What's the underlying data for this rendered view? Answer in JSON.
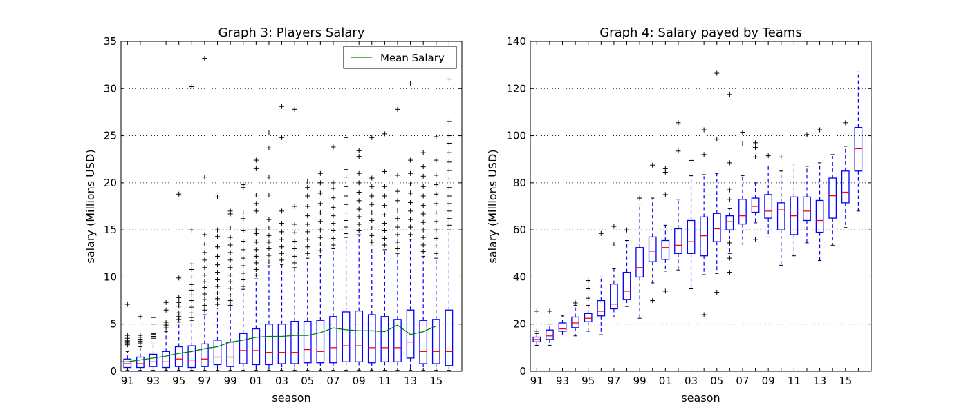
{
  "chart_data": [
    {
      "type": "box",
      "title": "Graph 3: Players Salary",
      "xlabel": "season",
      "ylabel": "salary (Millions USD)",
      "ylim": [
        0,
        35
      ],
      "yticks": [
        0,
        5,
        10,
        15,
        20,
        25,
        30,
        35
      ],
      "grid": "horizontal dotted",
      "legend": {
        "position": "top-right",
        "entries": [
          "Mean Salary"
        ]
      },
      "x": [
        "91",
        "92",
        "93",
        "94",
        "95",
        "96",
        "97",
        "98",
        "99",
        "00",
        "01",
        "02",
        "03",
        "04",
        "05",
        "06",
        "07",
        "08",
        "09",
        "10",
        "11",
        "12",
        "13",
        "14",
        "15",
        "16"
      ],
      "xtick_labels": [
        "91",
        "93",
        "95",
        "97",
        "99",
        "01",
        "03",
        "05",
        "07",
        "09",
        "11",
        "13",
        "15"
      ],
      "box_color": "#0000ff",
      "median_color": "#ff0000",
      "mean_color": "#008000",
      "boxes": [
        {
          "q1": 0.4,
          "median": 0.8,
          "q3": 1.3,
          "whislo": 0.1,
          "whishi": 2.1,
          "fliers": [
            2.8,
            3.0,
            3.1,
            3.2,
            3.3,
            3.5,
            3.8,
            7.1
          ]
        },
        {
          "q1": 0.4,
          "median": 0.8,
          "q3": 1.5,
          "whislo": 0.1,
          "whishi": 2.6,
          "fliers": [
            3.0,
            3.2,
            3.4,
            3.6,
            3.8,
            5.8
          ]
        },
        {
          "q1": 0.5,
          "median": 1.0,
          "q3": 1.8,
          "whislo": 0.1,
          "whishi": 2.9,
          "fliers": [
            3.5,
            3.7,
            3.9,
            4.0,
            5.0,
            5.7
          ]
        },
        {
          "q1": 0.4,
          "median": 1.0,
          "q3": 2.1,
          "whislo": 0.1,
          "whishi": 4.2,
          "fliers": [
            4.6,
            4.9,
            5.2,
            6.5,
            7.3
          ]
        },
        {
          "q1": 0.5,
          "median": 1.3,
          "q3": 2.6,
          "whislo": 0.1,
          "whishi": 5.2,
          "fliers": [
            5.5,
            5.8,
            6.2,
            6.9,
            7.3,
            7.8,
            9.9,
            18.8
          ]
        },
        {
          "q1": 0.4,
          "median": 1.2,
          "q3": 2.7,
          "whislo": 0.1,
          "whishi": 5.4,
          "fliers": [
            5.7,
            6.2,
            6.8,
            7.5,
            8.1,
            8.6,
            9.2,
            10.0,
            10.8,
            11.4,
            15.0,
            30.2
          ]
        },
        {
          "q1": 0.5,
          "median": 1.3,
          "q3": 2.9,
          "whislo": 0.1,
          "whishi": 6.0,
          "fliers": [
            6.5,
            7.0,
            7.6,
            8.2,
            8.9,
            9.5,
            10.2,
            11.0,
            11.8,
            12.6,
            13.5,
            14.5,
            20.6,
            33.2
          ]
        },
        {
          "q1": 0.7,
          "median": 1.5,
          "q3": 3.3,
          "whislo": 0.1,
          "whishi": 6.7,
          "fliers": [
            7.1,
            7.7,
            8.3,
            9.0,
            9.7,
            10.5,
            11.3,
            12.2,
            13.2,
            14.3,
            15.0,
            18.5
          ]
        },
        {
          "q1": 0.5,
          "median": 1.5,
          "q3": 3.1,
          "whislo": 0.1,
          "whishi": 6.7,
          "fliers": [
            7.0,
            7.5,
            8.1,
            8.8,
            9.5,
            10.2,
            11.0,
            11.8,
            12.6,
            13.4,
            14.2,
            15.2,
            16.7,
            17.0
          ]
        },
        {
          "q1": 0.8,
          "median": 2.2,
          "q3": 4.0,
          "whislo": 0.1,
          "whishi": 8.7,
          "fliers": [
            9.0,
            9.7,
            10.4,
            11.2,
            12.0,
            12.9,
            13.8,
            14.9,
            16.2,
            16.8,
            19.5,
            19.8
          ]
        },
        {
          "q1": 0.7,
          "median": 2.2,
          "q3": 4.5,
          "whislo": 0.1,
          "whishi": 9.8,
          "fliers": [
            10.2,
            10.8,
            11.5,
            12.2,
            12.9,
            13.7,
            14.6,
            15.0,
            17.0,
            17.8,
            18.7,
            21.5,
            22.4
          ]
        },
        {
          "q1": 0.7,
          "median": 2.0,
          "q3": 5.0,
          "whislo": 0.1,
          "whishi": 11.2,
          "fliers": [
            11.6,
            12.3,
            13.0,
            13.7,
            14.4,
            15.2,
            16.1,
            18.7,
            20.6,
            23.7,
            25.3
          ]
        },
        {
          "q1": 0.8,
          "median": 2.0,
          "q3": 5.0,
          "whislo": 0.1,
          "whishi": 11.3,
          "fliers": [
            11.8,
            12.5,
            13.2,
            14.0,
            14.8,
            15.7,
            17.0,
            24.8,
            28.1
          ]
        },
        {
          "q1": 0.8,
          "median": 2.0,
          "q3": 5.3,
          "whislo": 0.1,
          "whishi": 11.0,
          "fliers": [
            11.5,
            12.2,
            13.0,
            13.8,
            14.7,
            15.6,
            17.5,
            27.8
          ]
        },
        {
          "q1": 0.9,
          "median": 2.3,
          "q3": 5.3,
          "whislo": 0.1,
          "whishi": 12.0,
          "fliers": [
            12.5,
            13.2,
            14.0,
            14.8,
            15.6,
            16.5,
            17.5,
            18.6,
            19.5,
            20.1
          ]
        },
        {
          "q1": 0.9,
          "median": 2.1,
          "q3": 5.4,
          "whislo": 0.1,
          "whishi": 12.3,
          "fliers": [
            12.8,
            13.5,
            14.2,
            15.0,
            15.9,
            16.8,
            17.8,
            18.9,
            20.0,
            21.0
          ]
        },
        {
          "q1": 0.9,
          "median": 2.5,
          "q3": 5.8,
          "whislo": 0.1,
          "whishi": 13.0,
          "fliers": [
            13.4,
            14.1,
            14.9,
            15.7,
            16.5,
            17.4,
            18.4,
            19.4,
            20.0,
            23.8
          ]
        },
        {
          "q1": 1.0,
          "median": 2.7,
          "q3": 6.3,
          "whislo": 0.1,
          "whishi": 14.2,
          "fliers": [
            14.6,
            15.3,
            16.0,
            16.8,
            17.7,
            18.6,
            19.6,
            20.6,
            21.4,
            24.8
          ]
        },
        {
          "q1": 1.0,
          "median": 2.7,
          "q3": 6.4,
          "whislo": 0.1,
          "whishi": 14.5,
          "fliers": [
            14.9,
            15.6,
            16.4,
            17.2,
            18.1,
            19.0,
            20.0,
            21.0,
            22.8,
            23.4
          ]
        },
        {
          "q1": 0.9,
          "median": 2.5,
          "q3": 6.0,
          "whislo": 0.1,
          "whishi": 13.3,
          "fliers": [
            13.7,
            14.4,
            15.2,
            16.0,
            16.8,
            17.7,
            18.6,
            19.6,
            20.5,
            24.8
          ]
        },
        {
          "q1": 1.0,
          "median": 2.5,
          "q3": 5.8,
          "whislo": 0.1,
          "whishi": 12.9,
          "fliers": [
            13.4,
            14.1,
            14.9,
            15.7,
            16.6,
            17.6,
            18.6,
            19.6,
            21.2,
            25.2
          ]
        },
        {
          "q1": 1.0,
          "median": 2.5,
          "q3": 5.5,
          "whislo": 0.1,
          "whishi": 12.5,
          "fliers": [
            13.0,
            13.7,
            14.5,
            15.3,
            16.2,
            17.1,
            18.1,
            19.1,
            20.8,
            27.8
          ]
        },
        {
          "q1": 1.4,
          "median": 3.1,
          "q3": 6.5,
          "whislo": 0.1,
          "whishi": 14.0,
          "fliers": [
            14.5,
            15.3,
            16.1,
            17.0,
            17.9,
            18.9,
            19.9,
            21.0,
            22.4,
            30.5
          ]
        },
        {
          "q1": 0.8,
          "median": 2.1,
          "q3": 5.4,
          "whislo": 0.1,
          "whishi": 12.2,
          "fliers": [
            12.7,
            13.4,
            14.2,
            15.0,
            15.8,
            16.7,
            17.6,
            18.6,
            19.6,
            20.7,
            21.7,
            23.2
          ]
        },
        {
          "q1": 0.8,
          "median": 2.1,
          "q3": 5.5,
          "whislo": 0.1,
          "whishi": 12.0,
          "fliers": [
            12.5,
            13.3,
            14.1,
            15.0,
            15.9,
            16.8,
            17.8,
            18.8,
            19.8,
            20.8,
            22.4,
            24.9
          ]
        },
        {
          "q1": 0.6,
          "median": 2.1,
          "q3": 6.5,
          "whislo": 0.1,
          "whishi": 15.0,
          "fliers": [
            15.5,
            16.2,
            17.0,
            17.8,
            18.6,
            19.5,
            20.4,
            21.3,
            22.2,
            23.2,
            24.2,
            25.0,
            26.5,
            31.0
          ]
        }
      ],
      "series": [
        {
          "name": "Mean Salary",
          "values": [
            1.0,
            1.2,
            1.4,
            1.6,
            1.9,
            2.1,
            2.4,
            2.6,
            3.1,
            3.3,
            3.6,
            3.7,
            3.7,
            3.8,
            3.8,
            4.1,
            4.6,
            4.4,
            4.3,
            4.3,
            4.2,
            4.9,
            3.9,
            4.2,
            4.8,
            null
          ]
        }
      ]
    },
    {
      "type": "box",
      "title": "Graph 4: Salary payed by Teams",
      "xlabel": "season",
      "ylabel": "salary (Millions USD)",
      "ylim": [
        0,
        140
      ],
      "yticks": [
        0,
        20,
        40,
        60,
        80,
        100,
        120,
        140
      ],
      "grid": "horizontal dotted",
      "x": [
        "91",
        "92",
        "93",
        "94",
        "95",
        "96",
        "97",
        "98",
        "99",
        "00",
        "01",
        "02",
        "03",
        "04",
        "05",
        "06",
        "07",
        "08",
        "09",
        "10",
        "11",
        "12",
        "13",
        "14",
        "15",
        "16"
      ],
      "xtick_labels": [
        "91",
        "93",
        "95",
        "97",
        "99",
        "01",
        "03",
        "05",
        "07",
        "09",
        "11",
        "13",
        "15"
      ],
      "box_color": "#0000ff",
      "median_color": "#ff0000",
      "boxes": [
        {
          "q1": 12.5,
          "median": 13.5,
          "q3": 14.5,
          "whislo": 11.0,
          "whishi": 16.0,
          "fliers": [
            17.0,
            25.5
          ]
        },
        {
          "q1": 13.5,
          "median": 15.0,
          "q3": 17.5,
          "whislo": 11.0,
          "whishi": 20.0,
          "fliers": [
            25.5
          ]
        },
        {
          "q1": 17.0,
          "median": 18.0,
          "q3": 20.5,
          "whislo": 14.5,
          "whishi": 23.5,
          "fliers": []
        },
        {
          "q1": 18.5,
          "median": 20.5,
          "q3": 23.0,
          "whislo": 15.0,
          "whishi": 28.0,
          "fliers": [
            29.0
          ]
        },
        {
          "q1": 21.0,
          "median": 22.5,
          "q3": 24.5,
          "whislo": 17.0,
          "whishi": 28.0,
          "fliers": [
            31.0,
            35.0,
            38.5
          ]
        },
        {
          "q1": 23.5,
          "median": 25.5,
          "q3": 30.0,
          "whislo": 15.5,
          "whishi": 40.0,
          "fliers": [
            58.5
          ]
        },
        {
          "q1": 26.5,
          "median": 28.5,
          "q3": 37.0,
          "whislo": 23.0,
          "whishi": 43.5,
          "fliers": [
            54.0,
            61.5
          ]
        },
        {
          "q1": 30.5,
          "median": 34.0,
          "q3": 42.0,
          "whislo": 27.5,
          "whishi": 55.5,
          "fliers": [
            60.0
          ]
        },
        {
          "q1": 40.0,
          "median": 44.0,
          "q3": 52.5,
          "whislo": 22.5,
          "whishi": 71.0,
          "fliers": [
            73.5
          ]
        },
        {
          "q1": 46.5,
          "median": 51.0,
          "q3": 57.0,
          "whislo": 37.5,
          "whishi": 73.5,
          "fliers": [
            30.0,
            87.5
          ]
        },
        {
          "q1": 47.5,
          "median": 52.5,
          "q3": 55.5,
          "whislo": 42.5,
          "whishi": 62.0,
          "fliers": [
            34.0,
            75.0,
            84.5,
            86.0
          ]
        },
        {
          "q1": 50.0,
          "median": 53.5,
          "q3": 60.5,
          "whislo": 43.0,
          "whishi": 73.0,
          "fliers": [
            93.5,
            105.5
          ]
        },
        {
          "q1": 50.0,
          "median": 55.0,
          "q3": 64.0,
          "whislo": 35.0,
          "whishi": 83.0,
          "fliers": [
            89.5
          ]
        },
        {
          "q1": 49.0,
          "median": 57.5,
          "q3": 65.5,
          "whislo": 41.0,
          "whishi": 83.5,
          "fliers": [
            24.0,
            92.0,
            102.5
          ]
        },
        {
          "q1": 55.0,
          "median": 60.5,
          "q3": 67.0,
          "whislo": 41.5,
          "whishi": 84.0,
          "fliers": [
            33.5,
            98.5,
            126.5
          ]
        },
        {
          "q1": 60.0,
          "median": 63.5,
          "q3": 66.0,
          "whislo": 50.0,
          "whishi": 69.0,
          "fliers": [
            42.0,
            48.0,
            54.5,
            73.0,
            77.0,
            88.5,
            117.5
          ]
        },
        {
          "q1": 62.5,
          "median": 66.0,
          "q3": 73.0,
          "whislo": 54.0,
          "whishi": 83.0,
          "fliers": [
            96.5,
            101.5
          ]
        },
        {
          "q1": 67.5,
          "median": 70.0,
          "q3": 73.5,
          "whislo": 63.0,
          "whishi": 80.0,
          "fliers": [
            56.0,
            91.0,
            95.0,
            97.0
          ]
        },
        {
          "q1": 65.0,
          "median": 68.0,
          "q3": 75.0,
          "whislo": 57.0,
          "whishi": 88.0,
          "fliers": [
            91.5
          ]
        },
        {
          "q1": 60.0,
          "median": 68.5,
          "q3": 71.5,
          "whislo": 45.0,
          "whishi": 85.0,
          "fliers": [
            91.0
          ]
        },
        {
          "q1": 58.0,
          "median": 66.0,
          "q3": 74.0,
          "whislo": 49.0,
          "whishi": 88.0,
          "fliers": []
        },
        {
          "q1": 64.0,
          "median": 68.0,
          "q3": 74.0,
          "whislo": 54.5,
          "whishi": 87.0,
          "fliers": [
            100.5
          ]
        },
        {
          "q1": 59.0,
          "median": 64.0,
          "q3": 72.5,
          "whislo": 47.0,
          "whishi": 88.5,
          "fliers": [
            102.5
          ]
        },
        {
          "q1": 65.0,
          "median": 74.5,
          "q3": 82.0,
          "whislo": 53.5,
          "whishi": 92.0,
          "fliers": []
        },
        {
          "q1": 71.5,
          "median": 76.0,
          "q3": 85.0,
          "whislo": 61.0,
          "whishi": 95.5,
          "fliers": [
            105.5
          ]
        },
        {
          "q1": 85.0,
          "median": 94.5,
          "q3": 103.5,
          "whislo": 68.0,
          "whishi": 127.0,
          "fliers": []
        }
      ]
    }
  ]
}
